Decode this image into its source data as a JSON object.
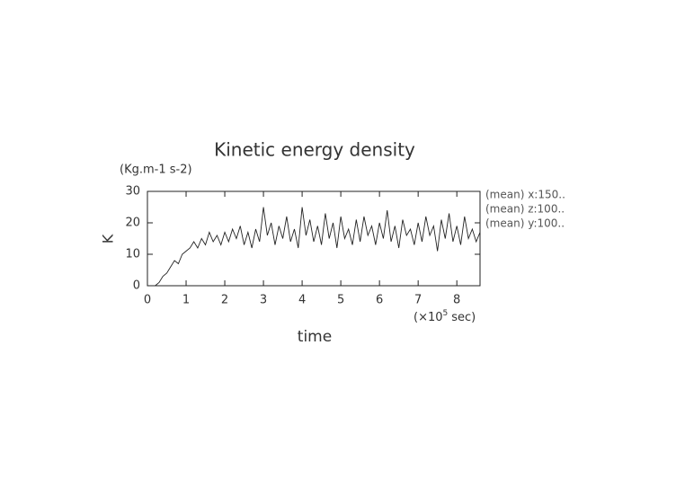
{
  "chart_data": {
    "type": "line",
    "title": "Kinetic energy density",
    "y_units": "(Kg.m-1 s-2)",
    "y_label": "K",
    "x_label": "time",
    "x_unit_prefix": "(×10",
    "x_unit_exponent": "5",
    "x_unit_suffix": "sec)",
    "annotations": [
      "(mean) x:150..",
      "(mean) z:100..",
      "(mean) y:100.."
    ],
    "xlim": [
      0,
      8.6
    ],
    "ylim": [
      0,
      30
    ],
    "xticks": [
      0,
      1,
      2,
      3,
      4,
      5,
      6,
      7,
      8
    ],
    "yticks": [
      0,
      10,
      20,
      30
    ],
    "x": [
      0,
      0.1,
      0.2,
      0.3,
      0.4,
      0.5,
      0.6,
      0.7,
      0.8,
      0.9,
      1,
      1.1,
      1.2,
      1.3,
      1.4,
      1.5,
      1.6,
      1.7,
      1.8,
      1.9,
      2,
      2.1,
      2.2,
      2.3,
      2.4,
      2.5,
      2.6,
      2.7,
      2.8,
      2.9,
      3,
      3.1,
      3.2,
      3.3,
      3.4,
      3.5,
      3.6,
      3.7,
      3.8,
      3.9,
      4,
      4.1,
      4.2,
      4.3,
      4.4,
      4.5,
      4.6,
      4.7,
      4.8,
      4.9,
      5,
      5.1,
      5.2,
      5.3,
      5.4,
      5.5,
      5.6,
      5.7,
      5.8,
      5.9,
      6,
      6.1,
      6.2,
      6.3,
      6.4,
      6.5,
      6.6,
      6.7,
      6.8,
      6.9,
      7,
      7.1,
      7.2,
      7.3,
      7.4,
      7.5,
      7.6,
      7.7,
      7.8,
      7.9,
      8,
      8.1,
      8.2,
      8.3,
      8.4,
      8.5,
      8.6
    ],
    "series": [
      {
        "color": "#222",
        "values": [
          0,
          0,
          0,
          1,
          3,
          4,
          6,
          8,
          7,
          10,
          11,
          12,
          14,
          12,
          15,
          13,
          17,
          14,
          16,
          13,
          17,
          14,
          18,
          15,
          19,
          13,
          17,
          12,
          18,
          14,
          25,
          16,
          20,
          13,
          19,
          15,
          22,
          14,
          18,
          12,
          25,
          16,
          21,
          14,
          19,
          13,
          23,
          15,
          20,
          12,
          22,
          15,
          18,
          13,
          21,
          14,
          22,
          16,
          19,
          13,
          20,
          15,
          24,
          14,
          19,
          12,
          21,
          16,
          18,
          13,
          20,
          14,
          22,
          16,
          19,
          11,
          21,
          15,
          23,
          14,
          19,
          13,
          22,
          15,
          18,
          14,
          17
        ]
      }
    ]
  }
}
